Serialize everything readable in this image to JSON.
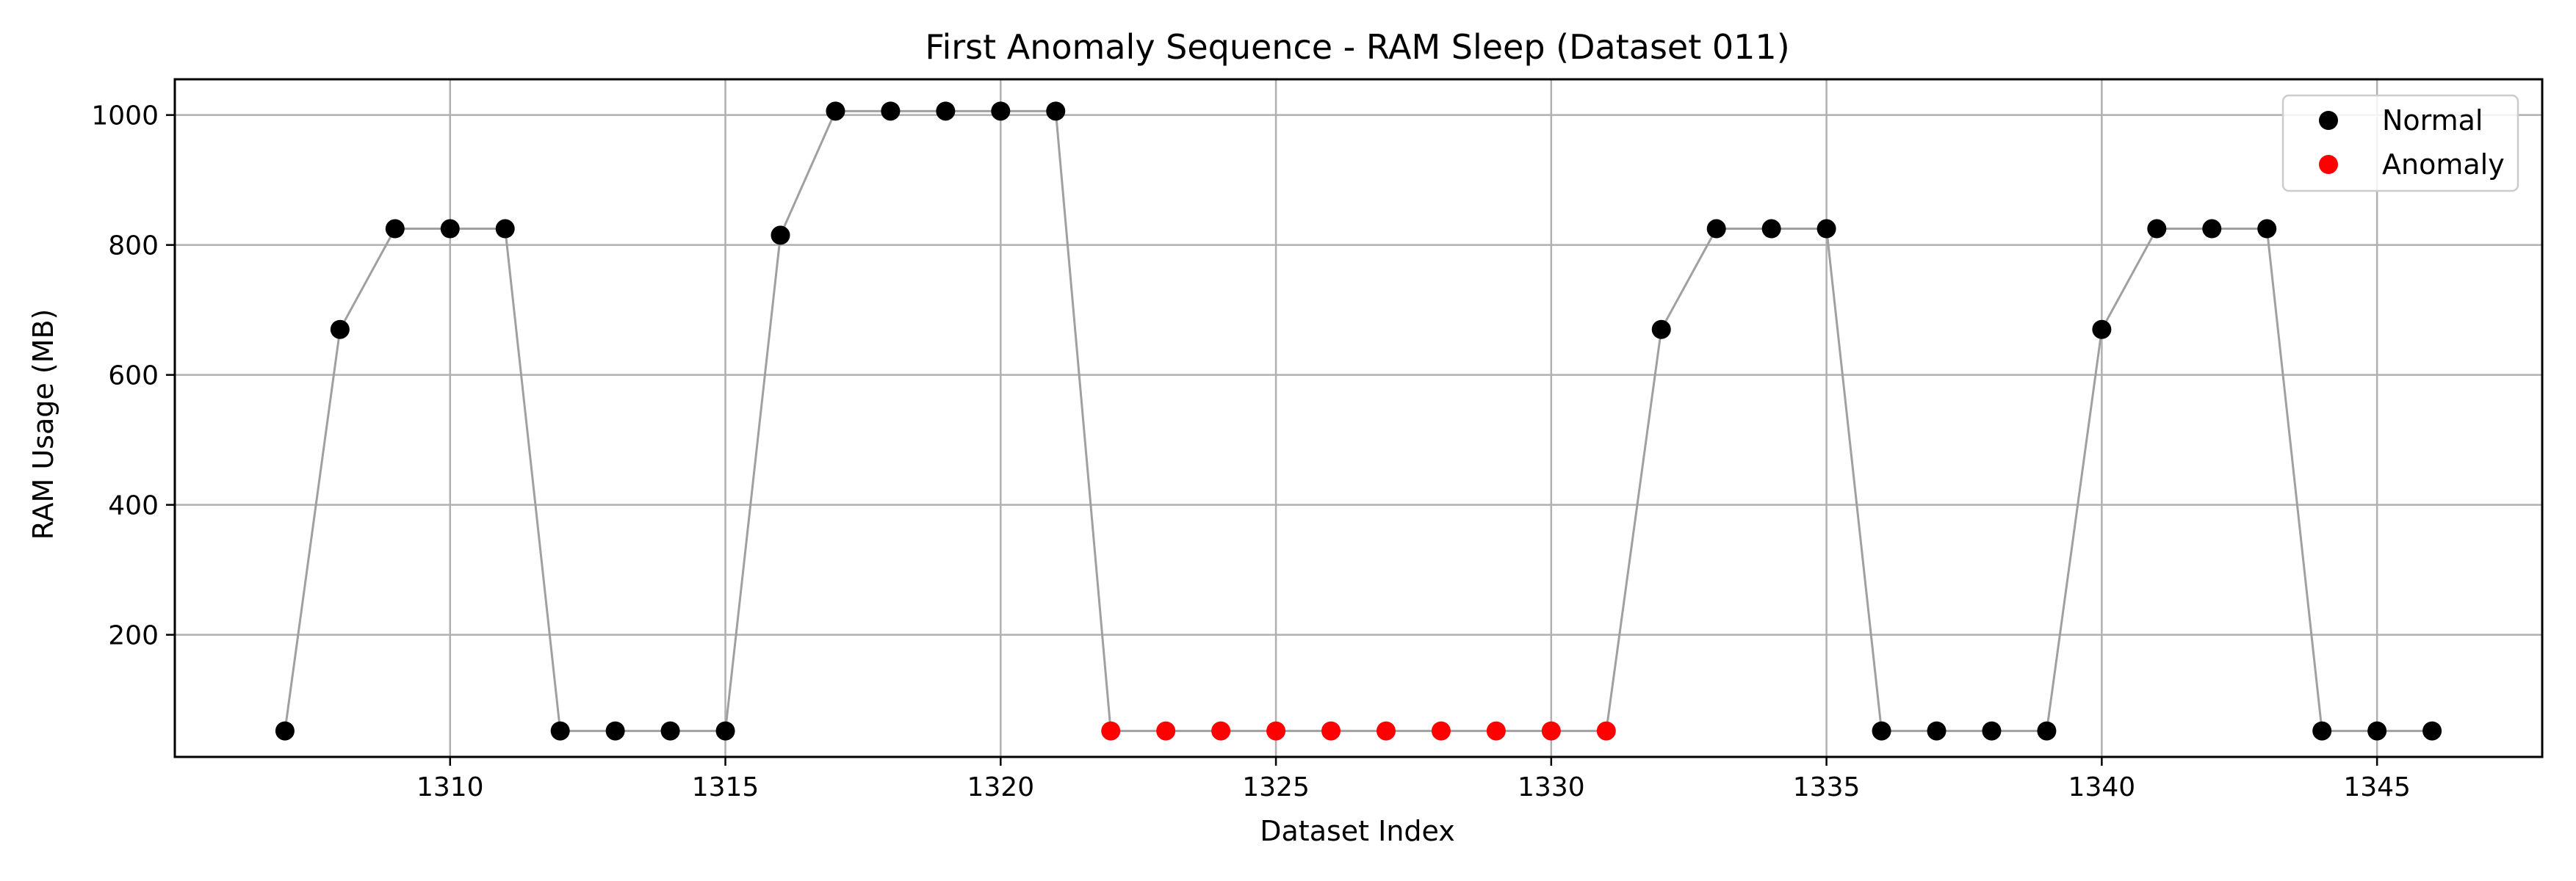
{
  "chart_data": {
    "type": "scatter",
    "title": "First Anomaly Sequence - RAM Sleep (Dataset 011)",
    "xlabel": "Dataset Index",
    "ylabel": "RAM Usage (MB)",
    "xlim": [
      1305,
      1348
    ],
    "ylim": [
      12,
      1055
    ],
    "xticks": [
      1310,
      1315,
      1320,
      1325,
      1330,
      1335,
      1340,
      1345
    ],
    "yticks": [
      200,
      400,
      600,
      800,
      1000
    ],
    "grid": true,
    "legend_position": "top-right",
    "line_color": "#a0a0a0",
    "x": [
      1307,
      1308,
      1309,
      1310,
      1311,
      1312,
      1313,
      1314,
      1315,
      1316,
      1317,
      1318,
      1319,
      1320,
      1321,
      1322,
      1323,
      1324,
      1325,
      1326,
      1327,
      1328,
      1329,
      1330,
      1331,
      1332,
      1333,
      1334,
      1335,
      1336,
      1337,
      1338,
      1339,
      1340,
      1341,
      1342,
      1343,
      1344,
      1345,
      1346
    ],
    "y": [
      52,
      670,
      825,
      825,
      825,
      52,
      52,
      52,
      52,
      815,
      1006,
      1006,
      1006,
      1006,
      1006,
      52,
      52,
      52,
      52,
      52,
      52,
      52,
      52,
      52,
      52,
      670,
      825,
      825,
      825,
      52,
      52,
      52,
      52,
      670,
      825,
      825,
      825,
      52,
      52,
      52
    ],
    "labels": [
      "Normal",
      "Normal",
      "Normal",
      "Normal",
      "Normal",
      "Normal",
      "Normal",
      "Normal",
      "Normal",
      "Normal",
      "Normal",
      "Normal",
      "Normal",
      "Normal",
      "Normal",
      "Anomaly",
      "Anomaly",
      "Anomaly",
      "Anomaly",
      "Anomaly",
      "Anomaly",
      "Anomaly",
      "Anomaly",
      "Anomaly",
      "Anomaly",
      "Normal",
      "Normal",
      "Normal",
      "Normal",
      "Normal",
      "Normal",
      "Normal",
      "Normal",
      "Normal",
      "Normal",
      "Normal",
      "Normal",
      "Normal",
      "Normal",
      "Normal"
    ],
    "series": [
      {
        "name": "Normal",
        "color": "#000000"
      },
      {
        "name": "Anomaly",
        "color": "#ff0000"
      }
    ]
  }
}
